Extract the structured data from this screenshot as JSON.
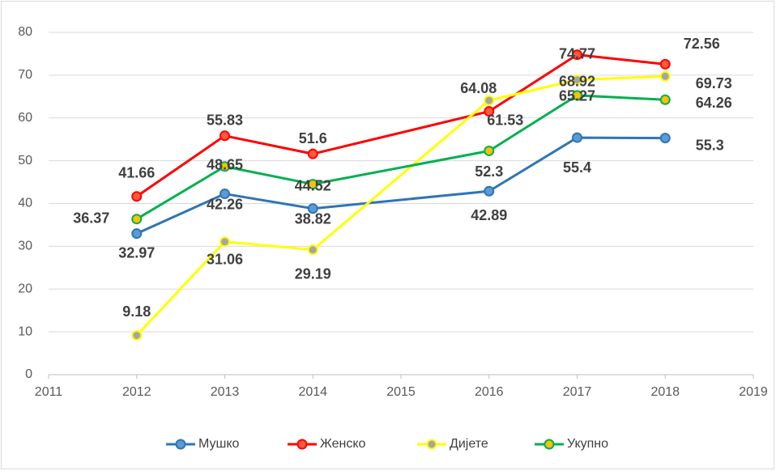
{
  "chart_data": {
    "type": "line",
    "x": [
      2012,
      2013,
      2014,
      2016,
      2017,
      2018
    ],
    "xlim": [
      2011,
      2019
    ],
    "xticks": [
      2011,
      2012,
      2013,
      2014,
      2015,
      2016,
      2017,
      2018,
      2019
    ],
    "ylim": [
      0,
      80
    ],
    "yticks": [
      0,
      10,
      20,
      30,
      40,
      50,
      60,
      70,
      80
    ],
    "grid": true,
    "legend": "bottom",
    "series": [
      {
        "name": "Мушко",
        "color": "#2e75b6",
        "marker_color": "#5b9bd5",
        "values": [
          32.97,
          42.26,
          38.82,
          42.89,
          55.4,
          55.3
        ]
      },
      {
        "name": "Женско",
        "color": "#ff0000",
        "marker_color": "#ff5b3b",
        "values": [
          41.66,
          55.83,
          51.6,
          61.53,
          74.77,
          72.56
        ]
      },
      {
        "name": "Дијете",
        "color": "#ffff00",
        "marker_color": "#a5a5a5",
        "values": [
          9.18,
          31.06,
          29.19,
          64.08,
          68.92,
          69.73
        ]
      },
      {
        "name": "Укупно",
        "color": "#00b050",
        "marker_color": "#ffc000",
        "values": [
          36.37,
          48.65,
          44.52,
          52.3,
          65.27,
          64.26
        ]
      }
    ]
  }
}
